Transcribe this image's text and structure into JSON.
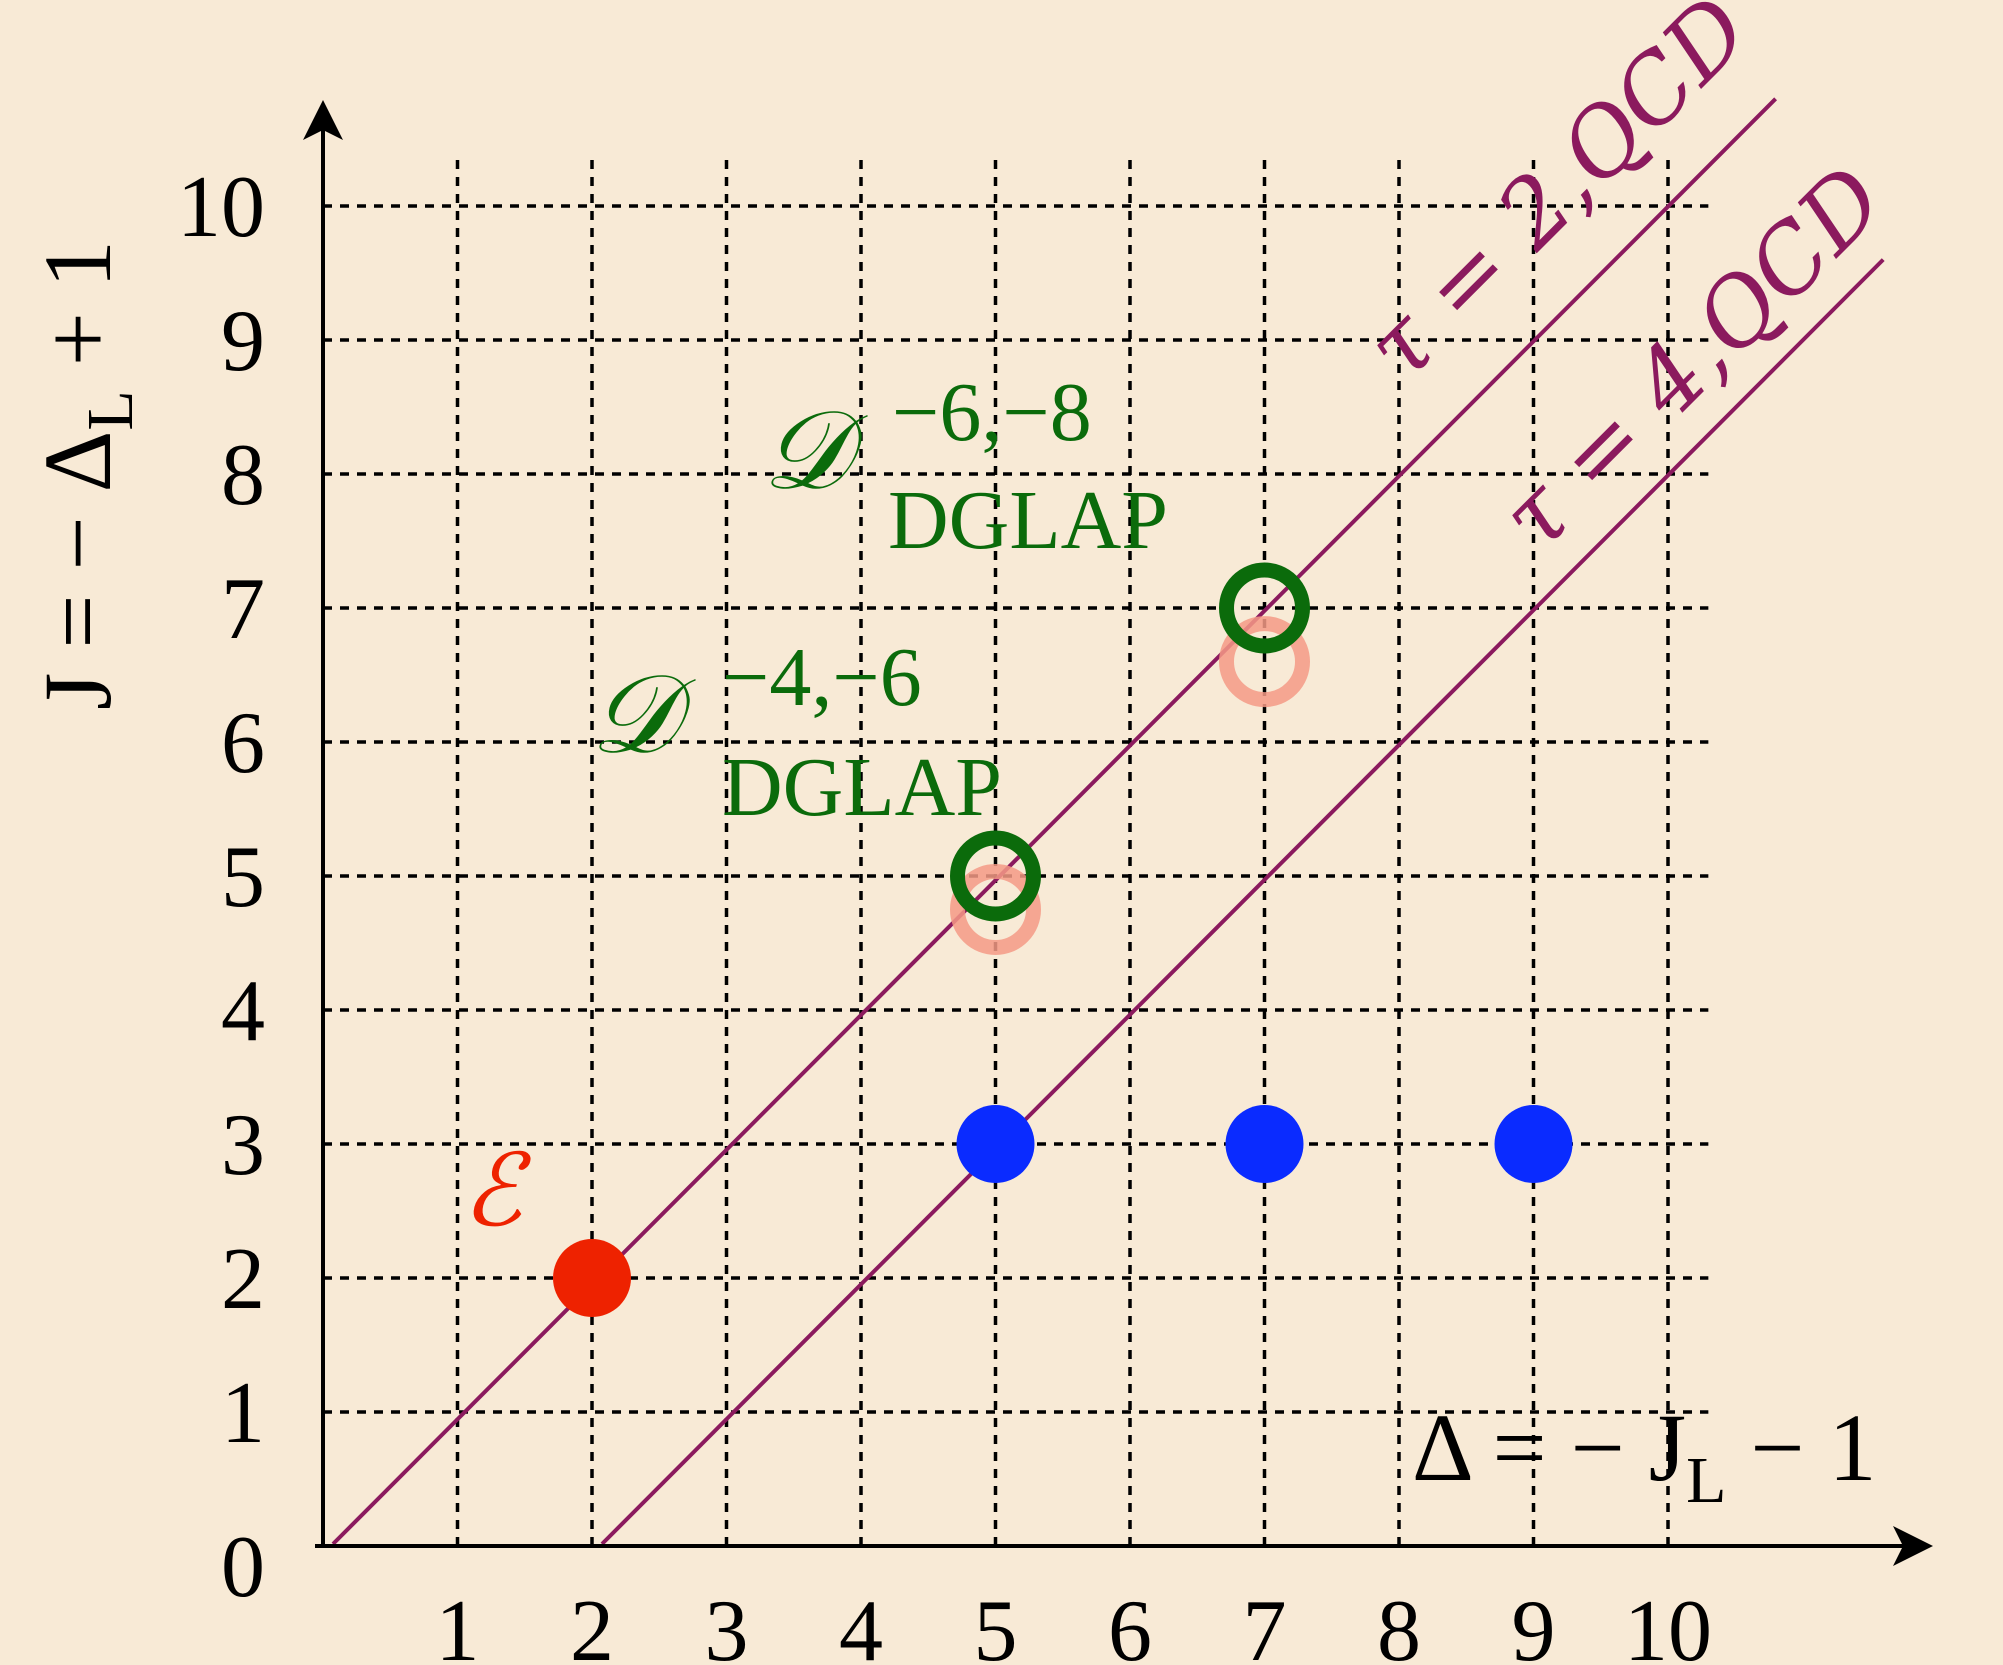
{
  "chart_data": {
    "type": "scatter",
    "xlabel": "Δ = − J_L − 1",
    "ylabel": "J = − Δ_L + 1",
    "xlim": [
      0,
      11
    ],
    "ylim": [
      0,
      10.5
    ],
    "x_ticks": [
      1,
      2,
      3,
      4,
      5,
      6,
      7,
      8,
      9,
      10
    ],
    "y_ticks": [
      0,
      1,
      2,
      3,
      4,
      5,
      6,
      7,
      8,
      9,
      10
    ],
    "grid": true,
    "lines": [
      {
        "label": "τ = 2,QCD",
        "slope": 1,
        "intercept": 0,
        "color": "#8b1a5e"
      },
      {
        "label": "τ = 4,QCD",
        "slope": 1,
        "intercept": -2,
        "color": "#8b1a5e"
      }
    ],
    "series": [
      {
        "name": "",
        "marker": "filled",
        "color": "#0a2bff",
        "points": [
          [
            5,
            3
          ],
          [
            7,
            3
          ],
          [
            9,
            3
          ]
        ]
      },
      {
        "name": "",
        "marker": "filled",
        "color": "#ee2200",
        "points": [
          [
            2,
            2
          ]
        ]
      },
      {
        "name": "",
        "marker": "ring",
        "color": "#0b6b0b",
        "points": [
          [
            5,
            5
          ],
          [
            7,
            7
          ]
        ]
      },
      {
        "name": "",
        "marker": "ring",
        "color": "#f49a86",
        "points": [
          [
            5,
            4.75
          ],
          [
            7,
            6.6
          ]
        ]
      }
    ],
    "annotations": [
      {
        "id": "E",
        "text": "ℰ",
        "color": "#ee2200"
      },
      {
        "id": "D46",
        "base": "𝒟",
        "sup": "−4,−6",
        "sub": "DGLAP",
        "color": "#0b6b0b"
      },
      {
        "id": "D68",
        "base": "𝒟",
        "sup": "−6,−8",
        "sub": "DGLAP",
        "color": "#0b6b0b"
      }
    ]
  },
  "labels": {
    "x_axis_main": "Δ = − J",
    "x_axis_sub": "L",
    "x_axis_tail": " − 1",
    "y_axis_main": "J = − Δ",
    "y_axis_sub": "L",
    "y_axis_tail": " + 1",
    "line1": "τ = 2,QCD",
    "line2": "τ = 4,QCD",
    "E_label": "ℰ",
    "D46_base": "𝒟",
    "D46_sup": "−4,−6",
    "D46_sub": "DGLAP",
    "D68_base": "𝒟",
    "D68_sup": "−6,−8",
    "D68_sub": "DGLAP"
  }
}
